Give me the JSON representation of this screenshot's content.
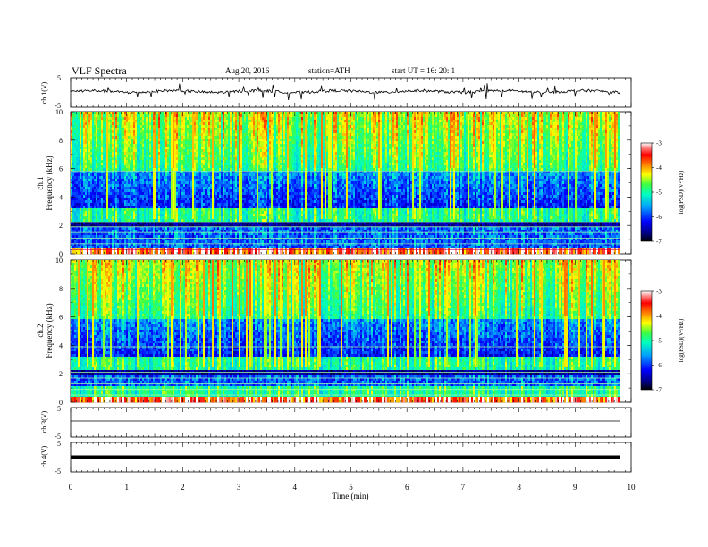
{
  "header": {
    "title": "VLF  Spectra",
    "date": "Aug.20, 2016",
    "station": "station=ATH",
    "start": "start  UT  =   16: 20: 1"
  },
  "chart_data": [
    {
      "panel": "ch1_waveform",
      "type": "line",
      "ylabel": "ch.1(V)",
      "yticks": [
        "5",
        "-5"
      ],
      "ylim": [
        -5,
        5
      ],
      "xlim": [
        0,
        10
      ],
      "series": [
        {
          "description_values": "noisy trace around ~0 V with frequent short spikes",
          "baseline": 0.3,
          "spike_amplitude": 2.5
        }
      ]
    },
    {
      "panel": "ch1_spectrogram",
      "type": "heatmap",
      "ylabel_line1": "ch.1",
      "ylabel_line2": "Frequency  (kHz)",
      "yticks": [
        "10",
        "8",
        "6",
        "4",
        "2",
        "0"
      ],
      "ylim": [
        0,
        10
      ],
      "xlim": [
        0,
        9.8
      ],
      "colorbar": {
        "label": "log(PSD)(V²/Hz)",
        "ticks": [
          "-3",
          "-4",
          "-5",
          "-6",
          "-7"
        ],
        "range": [
          -7,
          -3
        ]
      }
    },
    {
      "panel": "ch2_spectrogram",
      "type": "heatmap",
      "ylabel_line1": "ch.2",
      "ylabel_line2": "Frequency  (kHz)",
      "yticks": [
        "10",
        "8",
        "6",
        "4",
        "2",
        "0"
      ],
      "ylim": [
        0,
        10
      ],
      "xlim": [
        0,
        9.8
      ],
      "colorbar": {
        "label": "log(PSD)(V²/Hz)",
        "ticks": [
          "-3",
          "-4",
          "-5",
          "-6",
          "-7"
        ],
        "range": [
          -7,
          -3
        ]
      }
    },
    {
      "panel": "ch3_waveform",
      "type": "line",
      "ylabel": "ch.3(V)",
      "yticks": [
        "5",
        "-5"
      ],
      "ylim": [
        -5,
        5
      ],
      "series": [
        {
          "constant": 0
        }
      ]
    },
    {
      "panel": "ch4_waveform",
      "type": "line",
      "ylabel": "ch.4(V)",
      "yticks": [
        "5",
        "-5"
      ],
      "ylim": [
        -5,
        5
      ],
      "series": [
        {
          "constant": 0,
          "thick": true
        }
      ]
    }
  ],
  "xaxis": {
    "label": "Time  (min)",
    "ticks": [
      "0",
      "1",
      "2",
      "3",
      "4",
      "5",
      "6",
      "7",
      "8",
      "9",
      "10"
    ],
    "xlim": [
      0,
      10
    ]
  },
  "colors": {
    "colormap": [
      "#000000",
      "#0000ff",
      "#00c8ff",
      "#00ff80",
      "#ffff00",
      "#ff8000",
      "#ff0000",
      "#ffffff"
    ],
    "line": "#000000"
  }
}
